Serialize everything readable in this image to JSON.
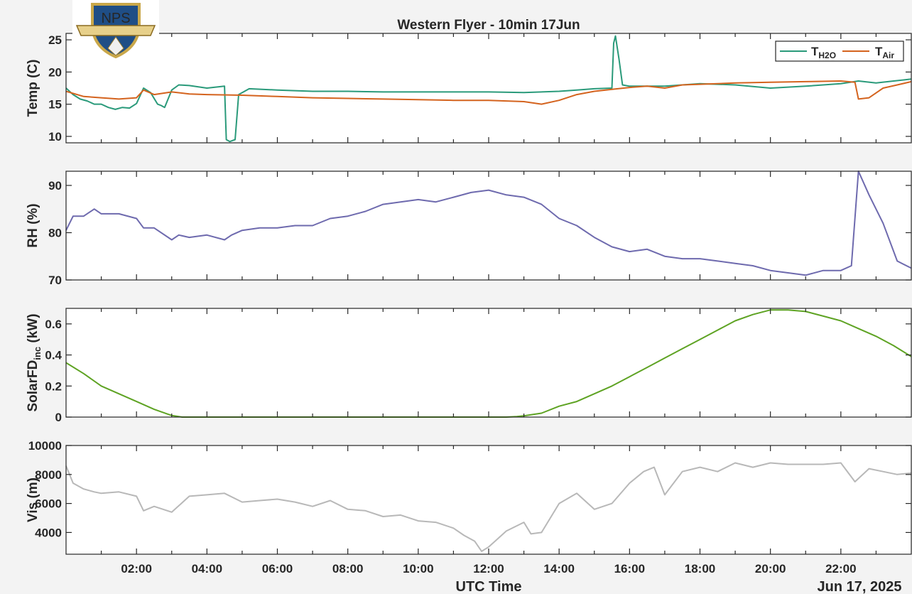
{
  "figure": {
    "title": "Western Flyer - 10min 17Jun",
    "xlabel": "UTC Time",
    "date_label": "Jun 17, 2025",
    "logo_text": "NPS"
  },
  "chart_data": [
    {
      "type": "line",
      "ylabel": "Temp (C)",
      "ylim": [
        9,
        26
      ],
      "yticks": [
        10,
        15,
        20,
        25
      ],
      "legend_position": "top-right",
      "legend_labels": [
        {
          "base": "T",
          "sub": "H2O"
        },
        {
          "base": "T",
          "sub": "Air"
        }
      ],
      "xlim": [
        0,
        24
      ],
      "xticks": [
        "02:00",
        "04:00",
        "06:00",
        "08:00",
        "10:00",
        "12:00",
        "14:00",
        "16:00",
        "18:00",
        "20:00",
        "22:00"
      ],
      "series": [
        {
          "legend_index": 0,
          "color": "#2a9a7a",
          "x": [
            0,
            0.2,
            0.4,
            0.6,
            0.8,
            1.0,
            1.2,
            1.4,
            1.6,
            1.8,
            2.0,
            2.2,
            2.4,
            2.6,
            2.7,
            2.8,
            3.0,
            3.2,
            3.5,
            4.0,
            4.5,
            4.55,
            4.65,
            4.8,
            4.9,
            5.2,
            6.0,
            7.0,
            8.0,
            9.0,
            10.0,
            11.0,
            12.0,
            13.0,
            14.0,
            14.5,
            15.0,
            15.5,
            15.55,
            15.6,
            15.7,
            15.8,
            16.0,
            17.0,
            18.0,
            19.0,
            20.0,
            21.0,
            22.0,
            22.5,
            23.0,
            23.5,
            24.0
          ],
          "y": [
            17.5,
            16.5,
            15.8,
            15.5,
            15.0,
            15.0,
            14.5,
            14.2,
            14.5,
            14.4,
            15.1,
            17.5,
            16.8,
            15.0,
            14.8,
            14.5,
            17.2,
            18.0,
            17.9,
            17.5,
            17.8,
            9.5,
            9.2,
            9.5,
            16.5,
            17.4,
            17.2,
            17.0,
            17.0,
            16.9,
            16.9,
            16.9,
            16.9,
            16.8,
            17.0,
            17.2,
            17.4,
            17.5,
            24.5,
            25.6,
            22.0,
            18.0,
            17.8,
            17.8,
            18.2,
            18.0,
            17.5,
            17.8,
            18.2,
            18.6,
            18.3,
            18.6,
            18.9
          ]
        },
        {
          "legend_index": 1,
          "color": "#d4631e",
          "x": [
            0,
            0.5,
            1.0,
            1.5,
            2.0,
            2.2,
            2.5,
            3.0,
            3.5,
            4.0,
            5.0,
            6.0,
            7.0,
            8.0,
            9.0,
            10.0,
            11.0,
            12.0,
            13.0,
            13.5,
            14.0,
            14.5,
            15.0,
            15.5,
            16.0,
            16.5,
            17.0,
            17.5,
            18.0,
            19.0,
            20.0,
            21.0,
            22.0,
            22.4,
            22.5,
            22.8,
            23.2,
            23.6,
            24.0
          ],
          "y": [
            17.0,
            16.2,
            16.0,
            15.8,
            16.0,
            17.2,
            16.5,
            16.9,
            16.6,
            16.5,
            16.4,
            16.2,
            16.0,
            15.9,
            15.8,
            15.7,
            15.6,
            15.6,
            15.4,
            15.0,
            15.6,
            16.5,
            17.0,
            17.3,
            17.6,
            17.8,
            17.5,
            18.0,
            18.1,
            18.3,
            18.4,
            18.5,
            18.6,
            18.4,
            15.8,
            16.0,
            17.5,
            18.0,
            18.5
          ]
        }
      ]
    },
    {
      "type": "line",
      "ylabel": "RH (%)",
      "ylim": [
        70,
        93
      ],
      "yticks": [
        70,
        80,
        90
      ],
      "xlim": [
        0,
        24
      ],
      "series": [
        {
          "color": "#6e6aae",
          "x": [
            0,
            0.2,
            0.5,
            0.8,
            1.0,
            1.5,
            2.0,
            2.2,
            2.5,
            3.0,
            3.2,
            3.5,
            4.0,
            4.5,
            4.7,
            5.0,
            5.5,
            6.0,
            6.5,
            7.0,
            7.5,
            8.0,
            8.5,
            9.0,
            9.5,
            10.0,
            10.5,
            11.0,
            11.5,
            12.0,
            12.5,
            13.0,
            13.5,
            14.0,
            14.5,
            15.0,
            15.5,
            16.0,
            16.5,
            17.0,
            17.5,
            18.0,
            18.5,
            19.0,
            19.5,
            20.0,
            20.5,
            21.0,
            21.5,
            22.0,
            22.3,
            22.5,
            22.8,
            23.2,
            23.6,
            24.0
          ],
          "y": [
            80.5,
            83.5,
            83.5,
            85,
            84,
            84,
            83,
            81,
            81,
            78.5,
            79.5,
            79,
            79.5,
            78.5,
            79.5,
            80.5,
            81,
            81,
            81.5,
            81.5,
            83,
            83.5,
            84.5,
            86,
            86.5,
            87,
            86.5,
            87.5,
            88.5,
            89,
            88,
            87.5,
            86,
            83,
            81.5,
            79,
            77,
            76,
            76.5,
            75,
            74.5,
            74.5,
            74,
            73.5,
            73,
            72,
            71.5,
            71,
            72,
            72,
            73,
            93,
            88,
            82,
            74,
            72.5
          ]
        }
      ]
    },
    {
      "type": "line",
      "ylabel_base": "SolarFD",
      "ylabel_sub": "inc",
      "ylabel_unit": " (kW)",
      "ylim": [
        0,
        0.7
      ],
      "yticks": [
        "0",
        "0.2",
        "0.4",
        "0.6"
      ],
      "xlim": [
        0,
        24
      ],
      "series": [
        {
          "color": "#5ea323",
          "x": [
            0,
            0.5,
            1.0,
            1.5,
            2.0,
            2.5,
            3.0,
            3.3,
            3.5,
            4.0,
            5.0,
            6.0,
            7.0,
            8.0,
            9.0,
            10.0,
            11.0,
            12.0,
            12.5,
            12.8,
            13.0,
            13.5,
            14.0,
            14.5,
            15.0,
            15.5,
            16.0,
            16.5,
            17.0,
            17.5,
            18.0,
            18.5,
            19.0,
            19.5,
            20.0,
            20.5,
            21.0,
            21.5,
            22.0,
            22.5,
            23.0,
            23.5,
            24.0
          ],
          "y": [
            0.35,
            0.28,
            0.2,
            0.15,
            0.1,
            0.05,
            0.01,
            0,
            0,
            0,
            0,
            0,
            0,
            0,
            0,
            0,
            0,
            0,
            0,
            0.003,
            0.008,
            0.025,
            0.07,
            0.1,
            0.15,
            0.2,
            0.26,
            0.32,
            0.38,
            0.44,
            0.5,
            0.56,
            0.62,
            0.66,
            0.69,
            0.69,
            0.68,
            0.65,
            0.62,
            0.57,
            0.52,
            0.46,
            0.39
          ]
        }
      ]
    },
    {
      "type": "line",
      "ylabel": "Vis (m)",
      "ylim": [
        2500,
        10000
      ],
      "yticks": [
        "4000",
        "6000",
        "8000",
        "10000"
      ],
      "xlim": [
        0,
        24
      ],
      "series": [
        {
          "color": "#b8b8b8",
          "x": [
            0,
            0.2,
            0.5,
            0.8,
            1.0,
            1.5,
            2.0,
            2.2,
            2.5,
            3.0,
            3.5,
            4.0,
            4.5,
            5.0,
            5.5,
            6.0,
            6.5,
            7.0,
            7.5,
            8.0,
            8.5,
            9.0,
            9.5,
            10.0,
            10.5,
            11.0,
            11.3,
            11.6,
            11.8,
            12.0,
            12.5,
            13.0,
            13.2,
            13.5,
            14.0,
            14.5,
            15.0,
            15.5,
            16.0,
            16.4,
            16.7,
            17.0,
            17.5,
            18.0,
            18.5,
            19.0,
            19.5,
            20.0,
            20.5,
            21.0,
            21.5,
            22.0,
            22.4,
            22.8,
            23.2,
            23.6,
            24.0
          ],
          "y": [
            8600,
            7400,
            7000,
            6800,
            6700,
            6800,
            6500,
            5500,
            5800,
            5400,
            6500,
            6600,
            6700,
            6100,
            6200,
            6300,
            6100,
            5800,
            6200,
            5600,
            5500,
            5100,
            5200,
            4800,
            4700,
            4300,
            3800,
            3400,
            2700,
            3000,
            4100,
            4700,
            3900,
            4000,
            6000,
            6700,
            5600,
            6000,
            7400,
            8200,
            8500,
            6600,
            8200,
            8500,
            8200,
            8800,
            8500,
            8800,
            8700,
            8700,
            8700,
            8800,
            7500,
            8400,
            8200,
            8000,
            8100
          ]
        }
      ]
    }
  ]
}
